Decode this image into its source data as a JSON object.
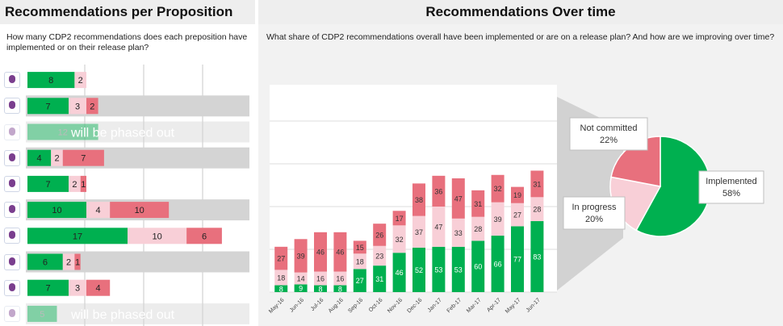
{
  "left_panel": {
    "title": "Recommendations per Proposition",
    "question": "How many CDP2 recommendations does each preposition have implemented or on their release plan?",
    "phased_out_label": "will be phased out",
    "rows": [
      {
        "icon": "connectmyso-logo-icon",
        "values": [
          8,
          2,
          0
        ],
        "faded": false
      },
      {
        "icon": "proposition-baby-icon",
        "values": [
          7,
          3,
          2
        ],
        "faded": false
      },
      {
        "icon": "proposition-bottle-icon",
        "values": [
          12,
          0,
          0
        ],
        "faded": true
      },
      {
        "icon": "proposition-kitchen-icon",
        "values": [
          4,
          2,
          7
        ],
        "faded": false
      },
      {
        "icon": "proposition-grill-icon",
        "values": [
          7,
          2,
          1
        ],
        "faded": false
      },
      {
        "icon": "proposition-tooth-icon",
        "values": [
          10,
          4,
          10
        ],
        "faded": false
      },
      {
        "icon": "proposition-chef-icon",
        "values": [
          17,
          10,
          6
        ],
        "faded": false
      },
      {
        "icon": "proposition-appliance-icon",
        "values": [
          6,
          2,
          1
        ],
        "faded": false
      },
      {
        "icon": "proposition-shaver-icon",
        "values": [
          7,
          3,
          4
        ],
        "faded": false
      },
      {
        "icon": "proposition-cup-icon",
        "values": [
          5,
          0,
          0
        ],
        "faded": true
      }
    ]
  },
  "right_panel": {
    "title": "Recommendations Over time",
    "question": "What share of CDP2 recommendations overall have been implemented or are on a release plan? And how are we improving over time?"
  },
  "colors": {
    "implemented": "#00b050",
    "in_progress": "#f8cfd7",
    "not_committed": "#e8707d",
    "row_band": "#d4d4d4"
  },
  "chart_data": [
    {
      "type": "bar",
      "stacked": true,
      "orientation": "horizontal",
      "categories": [
        "row1",
        "row2",
        "row3",
        "row4",
        "row5",
        "row6",
        "row7",
        "row8",
        "row9",
        "row10"
      ],
      "series": [
        {
          "values": [
            8,
            7,
            12,
            4,
            7,
            10,
            17,
            6,
            7,
            5
          ]
        },
        {
          "values": [
            2,
            3,
            0,
            2,
            2,
            4,
            10,
            2,
            3,
            0
          ]
        },
        {
          "values": [
            0,
            2,
            0,
            7,
            1,
            10,
            6,
            1,
            4,
            0
          ]
        }
      ]
    },
    {
      "type": "bar",
      "stacked": true,
      "categories": [
        "May-16",
        "Jun-16",
        "Jul-16",
        "Aug-16",
        "Sep-16",
        "Oct-16",
        "Nov-16",
        "Dec-16",
        "Jan-17",
        "Feb-17",
        "Mar-17",
        "Apr-17",
        "May-17",
        "Jun-17"
      ],
      "series": [
        {
          "values": [
            8,
            9,
            8,
            8,
            27,
            31,
            46,
            52,
            53,
            53,
            60,
            66,
            77,
            83
          ]
        },
        {
          "values": [
            18,
            14,
            16,
            16,
            18,
            23,
            32,
            37,
            47,
            33,
            28,
            39,
            27,
            28
          ]
        },
        {
          "values": [
            27,
            39,
            46,
            46,
            15,
            26,
            17,
            38,
            36,
            47,
            31,
            32,
            19,
            31
          ]
        }
      ],
      "grid": true
    },
    {
      "type": "pie",
      "labels": [
        "Implemented",
        "In progress",
        "Not committed"
      ],
      "values": [
        58,
        20,
        22
      ]
    }
  ]
}
